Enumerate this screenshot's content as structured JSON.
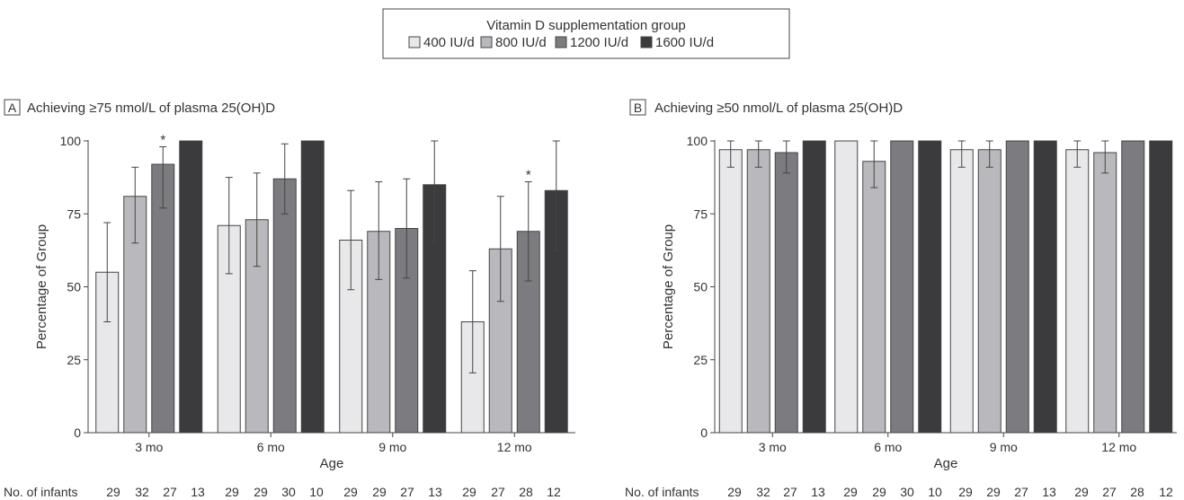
{
  "legend": {
    "title": "Vitamin D supplementation group",
    "items": [
      {
        "label": "400 IU/d",
        "color": "#e8e8ea"
      },
      {
        "label": "800 IU/d",
        "color": "#b9b9bd"
      },
      {
        "label": "1200 IU/d",
        "color": "#7b7b80"
      },
      {
        "label": "1600 IU/d",
        "color": "#3b3b3d"
      }
    ]
  },
  "chart_data": [
    {
      "type": "bar",
      "panel_letter": "A",
      "title": "Achieving ≥75 nmol/L of plasma 25(OH)D",
      "xlabel": "Age",
      "ylabel": "Percentage of Group",
      "ylim": [
        0,
        100
      ],
      "yticks": [
        0,
        25,
        50,
        75,
        100
      ],
      "categories": [
        "3 mo",
        "6 mo",
        "9 mo",
        "12 mo"
      ],
      "series": [
        {
          "name": "400 IU/d",
          "values": [
            55,
            71,
            66,
            38
          ],
          "err_low": [
            38,
            54.5,
            49,
            20.5
          ],
          "err_high": [
            72,
            87.5,
            83,
            55.5
          ]
        },
        {
          "name": "800 IU/d",
          "values": [
            81,
            73,
            69,
            63
          ],
          "err_low": [
            65,
            57,
            52.5,
            45
          ],
          "err_high": [
            91,
            89,
            86,
            81
          ]
        },
        {
          "name": "1200 IU/d",
          "values": [
            92,
            87,
            70,
            69
          ],
          "err_low": [
            77,
            75,
            53,
            52
          ],
          "err_high": [
            98,
            99,
            87,
            86
          ]
        },
        {
          "name": "1600 IU/d",
          "values": [
            100,
            100,
            85,
            83
          ],
          "err_low": [
            100,
            100,
            65.5,
            62.5
          ],
          "err_high": [
            100,
            100,
            100,
            100
          ]
        }
      ],
      "annotations": [
        {
          "text": "*",
          "category": 0,
          "series": 2
        },
        {
          "text": "*",
          "category": 3,
          "series": 2
        }
      ],
      "counts_label": "No. of infants",
      "counts": [
        [
          29,
          32,
          27,
          13
        ],
        [
          29,
          29,
          30,
          10
        ],
        [
          29,
          29,
          27,
          13
        ],
        [
          29,
          27,
          28,
          12
        ]
      ]
    },
    {
      "type": "bar",
      "panel_letter": "B",
      "title": "Achieving ≥50 nmol/L of plasma 25(OH)D",
      "xlabel": "Age",
      "ylabel": "Percentage of Group",
      "ylim": [
        0,
        100
      ],
      "yticks": [
        0,
        25,
        50,
        75,
        100
      ],
      "categories": [
        "3 mo",
        "6 mo",
        "9 mo",
        "12 mo"
      ],
      "series": [
        {
          "name": "400 IU/d",
          "values": [
            97,
            100,
            97,
            97
          ],
          "err_low": [
            91,
            100,
            91,
            91
          ],
          "err_high": [
            100,
            100,
            100,
            100
          ]
        },
        {
          "name": "800 IU/d",
          "values": [
            97,
            93,
            97,
            96
          ],
          "err_low": [
            91,
            84,
            91,
            89
          ],
          "err_high": [
            100,
            100,
            100,
            100
          ]
        },
        {
          "name": "1200 IU/d",
          "values": [
            96,
            100,
            100,
            100
          ],
          "err_low": [
            89,
            100,
            100,
            100
          ],
          "err_high": [
            100,
            100,
            100,
            100
          ]
        },
        {
          "name": "1600 IU/d",
          "values": [
            100,
            100,
            100,
            100
          ],
          "err_low": [
            100,
            100,
            100,
            100
          ],
          "err_high": [
            100,
            100,
            100,
            100
          ]
        }
      ],
      "annotations": [],
      "counts_label": "No. of infants",
      "counts": [
        [
          29,
          32,
          27,
          13
        ],
        [
          29,
          29,
          30,
          10
        ],
        [
          29,
          29,
          27,
          13
        ],
        [
          29,
          27,
          28,
          12
        ]
      ]
    }
  ]
}
